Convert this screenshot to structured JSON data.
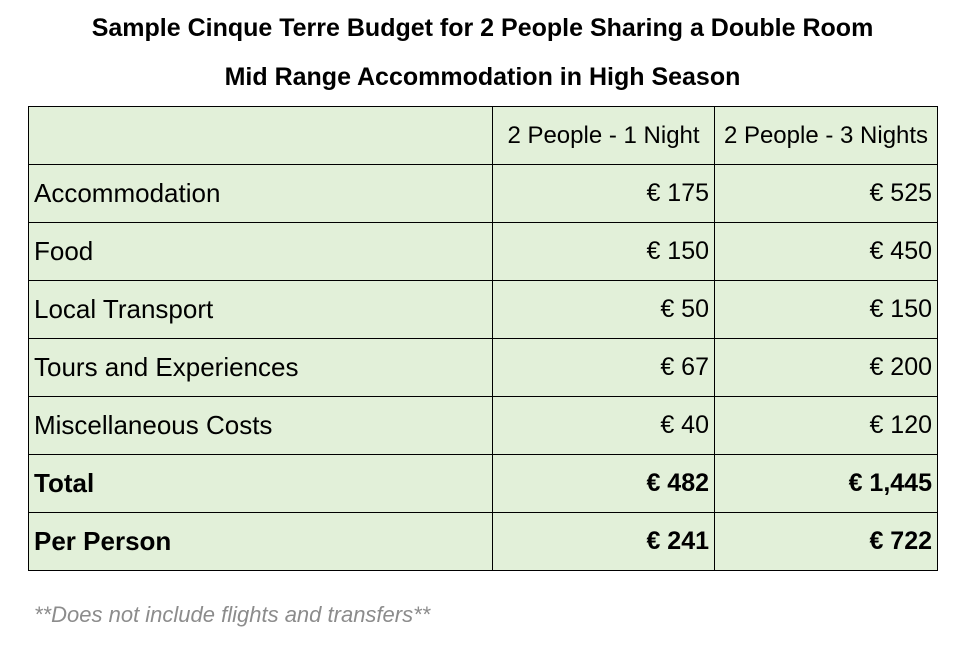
{
  "title": "Sample Cinque Terre Budget for 2 People Sharing a Double Room",
  "subtitle": "Mid Range Accommodation in High Season",
  "table": {
    "headers": [
      "",
      "2 People - 1 Night",
      "2 People - 3 Nights"
    ],
    "rows": [
      {
        "label": "Accommodation",
        "one_night": "€ 175",
        "three_nights": "€ 525"
      },
      {
        "label": "Food",
        "one_night": "€ 150",
        "three_nights": "€ 450"
      },
      {
        "label": "Local Transport",
        "one_night": "€ 50",
        "three_nights": "€ 150"
      },
      {
        "label": "Tours and Experiences",
        "one_night": "€ 67",
        "three_nights": "€ 200"
      },
      {
        "label": "Miscellaneous Costs",
        "one_night": "€ 40",
        "three_nights": "€ 120"
      },
      {
        "label": "Total",
        "one_night": "€ 482",
        "three_nights": "€ 1,445"
      },
      {
        "label": "Per Person",
        "one_night": "€ 241",
        "three_nights": "€ 722"
      }
    ]
  },
  "footnote": "**Does not include flights and transfers**",
  "colors": {
    "table_fill": "#e2f0d9",
    "border": "#000000",
    "footnote_text": "#8c8c8c"
  }
}
